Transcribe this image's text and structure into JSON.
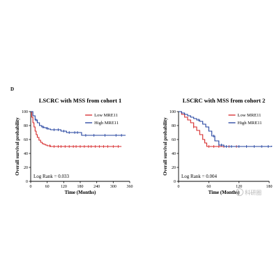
{
  "panel_letter": "D",
  "watermark": "科研圈",
  "colors": {
    "low": "#d62728",
    "high": "#1f3f9e",
    "axis": "#000000"
  },
  "chart_data": [
    {
      "type": "line",
      "title": "LSCRC with MSS from cohort 1",
      "xlabel": "Time (Months)",
      "ylabel": "Overall survival probability",
      "xlim": [
        0,
        360
      ],
      "ylim": [
        0,
        100
      ],
      "xticks": [
        0,
        60,
        120,
        180,
        240,
        300,
        360
      ],
      "yticks": [
        0,
        20,
        40,
        60,
        80,
        100
      ],
      "annotation": "Log Rank = 0.033",
      "legend": "top-right",
      "series": [
        {
          "name": "Low MRE11",
          "color": "#d62728",
          "x": [
            0,
            4,
            8,
            12,
            16,
            20,
            24,
            30,
            36,
            42,
            48,
            54,
            60,
            66,
            72,
            84,
            330
          ],
          "y": [
            100,
            92,
            84,
            78,
            72,
            67,
            63,
            59,
            56,
            54,
            53,
            52,
            51,
            51,
            50,
            50,
            50
          ],
          "censor_x": [
            70,
            85,
            100,
            110,
            125,
            140,
            155,
            165,
            180,
            195,
            210,
            220,
            235,
            250,
            265,
            280,
            300,
            318
          ]
        },
        {
          "name": "High MRE11",
          "color": "#1f3f9e",
          "x": [
            0,
            8,
            16,
            24,
            32,
            40,
            48,
            56,
            64,
            72,
            90,
            110,
            130,
            150,
            175,
            185,
            345
          ],
          "y": [
            100,
            94,
            88,
            84,
            80,
            78,
            77,
            76,
            75,
            74,
            74,
            72,
            70,
            70,
            70,
            66,
            66
          ],
          "censor_x": [
            20,
            45,
            60,
            85,
            100,
            120,
            140,
            160,
            170,
            200,
            230,
            270,
            310,
            330
          ]
        }
      ]
    },
    {
      "type": "line",
      "title": "LSCRC with MSS from cohort 2",
      "xlabel": "Time (Months)",
      "ylabel": "Overall survival probability",
      "xlim": [
        0,
        180
      ],
      "ylim": [
        0,
        100
      ],
      "xticks": [
        0,
        60,
        120,
        180
      ],
      "yticks": [
        0,
        20,
        40,
        60,
        80,
        100
      ],
      "annotation": "Log Rank = 0.004",
      "legend": "top-right",
      "series": [
        {
          "name": "Low MRE11",
          "color": "#d62728",
          "x": [
            0,
            6,
            12,
            18,
            24,
            30,
            36,
            42,
            48,
            52,
            56,
            130
          ],
          "y": [
            100,
            96,
            92,
            88,
            84,
            78,
            73,
            67,
            60,
            55,
            50,
            50
          ],
          "censor_x": [
            30,
            60,
            70,
            80,
            90,
            100,
            115
          ]
        },
        {
          "name": "High MRE11",
          "color": "#1f3f9e",
          "x": [
            0,
            6,
            12,
            18,
            24,
            30,
            36,
            42,
            48,
            54,
            60,
            66,
            72,
            80,
            90,
            150,
            185
          ],
          "y": [
            100,
            98,
            96,
            94,
            92,
            90,
            88,
            86,
            82,
            78,
            72,
            65,
            58,
            52,
            50,
            50,
            51
          ],
          "censor_x": [
            40,
            70,
            85,
            95,
            105,
            120,
            135,
            150,
            165,
            178
          ]
        }
      ]
    }
  ]
}
